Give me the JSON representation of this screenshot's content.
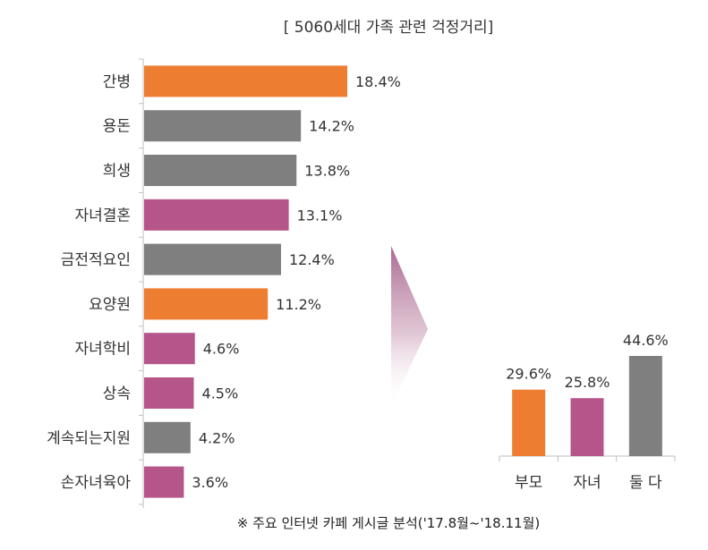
{
  "title": "[ 5060세대 가족 관련 걱정거리]",
  "note": "※ 주요 인터넷 카페 게시글 분석('17.8월~'18.11월)",
  "colors": {
    "orange": "#ED7D31",
    "gray": "#7F7F7F",
    "magenta": "#B5558A",
    "axis": "#BFBFBF"
  },
  "chart_data": [
    {
      "type": "bar",
      "orientation": "horizontal",
      "categories": [
        "간병",
        "용돈",
        "희생",
        "자녀결혼",
        "금전적요인",
        "요양원",
        "자녀학비",
        "상속",
        "계속되는지원",
        "손자녀육아"
      ],
      "values": [
        18.4,
        14.2,
        13.8,
        13.1,
        12.4,
        11.2,
        4.6,
        4.5,
        4.2,
        3.6
      ],
      "labels": [
        "18.4%",
        "14.2%",
        "13.8%",
        "13.1%",
        "12.4%",
        "11.2%",
        "4.6%",
        "4.5%",
        "4.2%",
        "3.6%"
      ],
      "bar_colors": [
        "orange",
        "gray",
        "gray",
        "magenta",
        "gray",
        "orange",
        "magenta",
        "magenta",
        "gray",
        "magenta"
      ],
      "xlim": [
        0,
        18.4
      ],
      "unit": "%"
    },
    {
      "type": "bar",
      "orientation": "vertical",
      "categories": [
        "부모",
        "자녀",
        "둘 다"
      ],
      "values": [
        29.6,
        25.8,
        44.6
      ],
      "labels": [
        "29.6%",
        "25.8%",
        "44.6%"
      ],
      "bar_colors": [
        "orange",
        "magenta",
        "gray"
      ],
      "ylim": [
        0,
        44.6
      ],
      "unit": "%"
    }
  ]
}
